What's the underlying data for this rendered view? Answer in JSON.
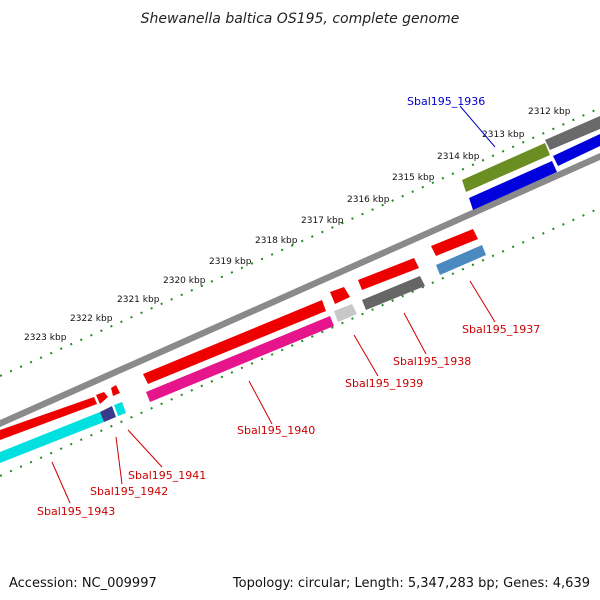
{
  "title": "Shewanella baltica OS195, complete genome",
  "accession": "Accession: NC_009997",
  "topology": "Topology: circular; Length: 5,347,283 bp; Genes: 4,639",
  "ticks": [
    "2312 kbp",
    "2313 kbp",
    "2314 kbp",
    "2315 kbp",
    "2316 kbp",
    "2317 kbp",
    "2318 kbp",
    "2319 kbp",
    "2320 kbp",
    "2321 kbp",
    "2322 kbp",
    "2323 kbp"
  ],
  "genes": [
    {
      "label": "Sbal195_1936",
      "color": "#0000cc"
    },
    {
      "label": "Sbal195_1937",
      "color": "#cc0000"
    },
    {
      "label": "Sbal195_1938",
      "color": "#cc0000"
    },
    {
      "label": "Sbal195_1939",
      "color": "#cc0000"
    },
    {
      "label": "Sbal195_1940",
      "color": "#cc0000"
    },
    {
      "label": "Sbal195_1941",
      "color": "#cc0000"
    },
    {
      "label": "Sbal195_1942",
      "color": "#cc0000"
    },
    {
      "label": "Sbal195_1943",
      "color": "#cc0000"
    }
  ],
  "colors": {
    "backbone": "#888888",
    "tick": "#228b22",
    "forward": "#ff0000",
    "reverse_cyan": "#00e5e5",
    "magenta": "#e6158c",
    "gray": "#666666",
    "steelblue": "#4a8ac0",
    "olive": "#6b8e23",
    "blue": "#0000dd",
    "navy": "#3a3a8a",
    "lightgray": "#c8c8c8"
  }
}
